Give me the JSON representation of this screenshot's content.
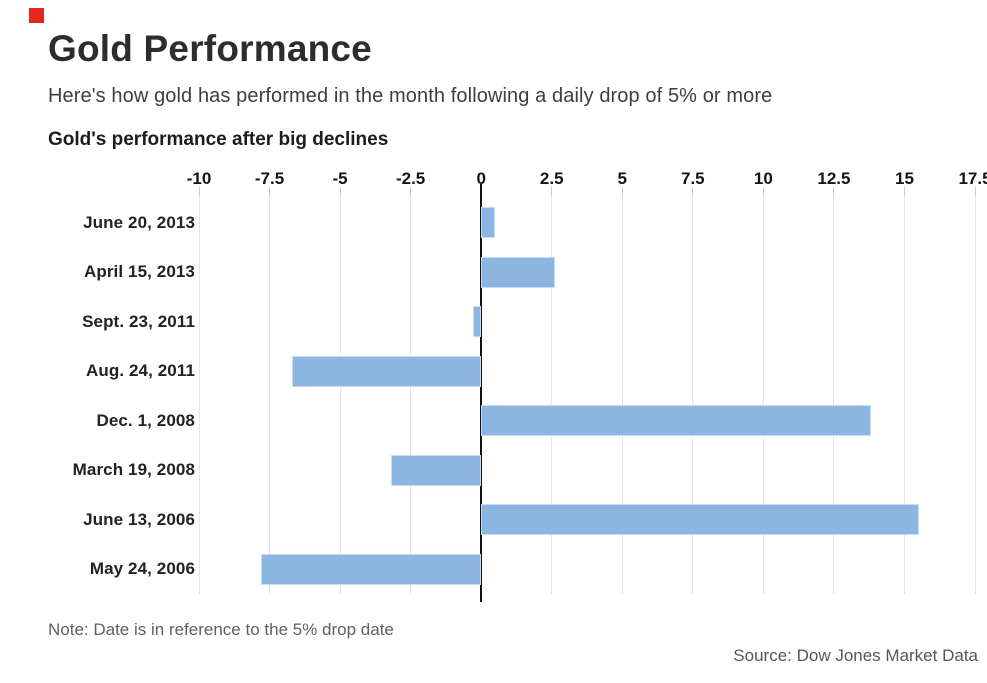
{
  "header": {
    "title": "Gold Performance",
    "subtitle": "Here's how gold has performed in the month following a daily drop of 5% or more"
  },
  "chart_heading": "Gold's performance after big declines",
  "chart_data": {
    "type": "bar",
    "orientation": "horizontal",
    "title": "Gold's performance after big declines",
    "categories": [
      "June 20, 2013",
      "April 15, 2013",
      "Sept. 23, 2011",
      "Aug. 24, 2011",
      "Dec. 1, 2008",
      "March 19, 2008",
      "June 13, 2006",
      "May 24, 2006"
    ],
    "values": [
      0.5,
      2.6,
      -0.3,
      -6.7,
      13.8,
      -3.2,
      15.5,
      -7.8
    ],
    "xlabel": "",
    "ylabel": "",
    "xlim": [
      -10,
      17.5
    ],
    "xticks": [
      "-10",
      "-7.5",
      "-5",
      "-2.5",
      "0",
      "2.5",
      "5",
      "7.5",
      "10",
      "12.5",
      "15",
      "17.5"
    ],
    "grid": true,
    "bar_color": "#8ab6e1",
    "bar_border_color": "#c9dcf1",
    "zero_line_color": "#111111",
    "gridline_color": "#e4e4e4",
    "unit": "percent"
  },
  "footer": {
    "note": "Note: Date is in reference to the 5% drop date",
    "source": "Source: Dow Jones Market Data"
  },
  "brand": {
    "logo_color": "#e5261f"
  }
}
